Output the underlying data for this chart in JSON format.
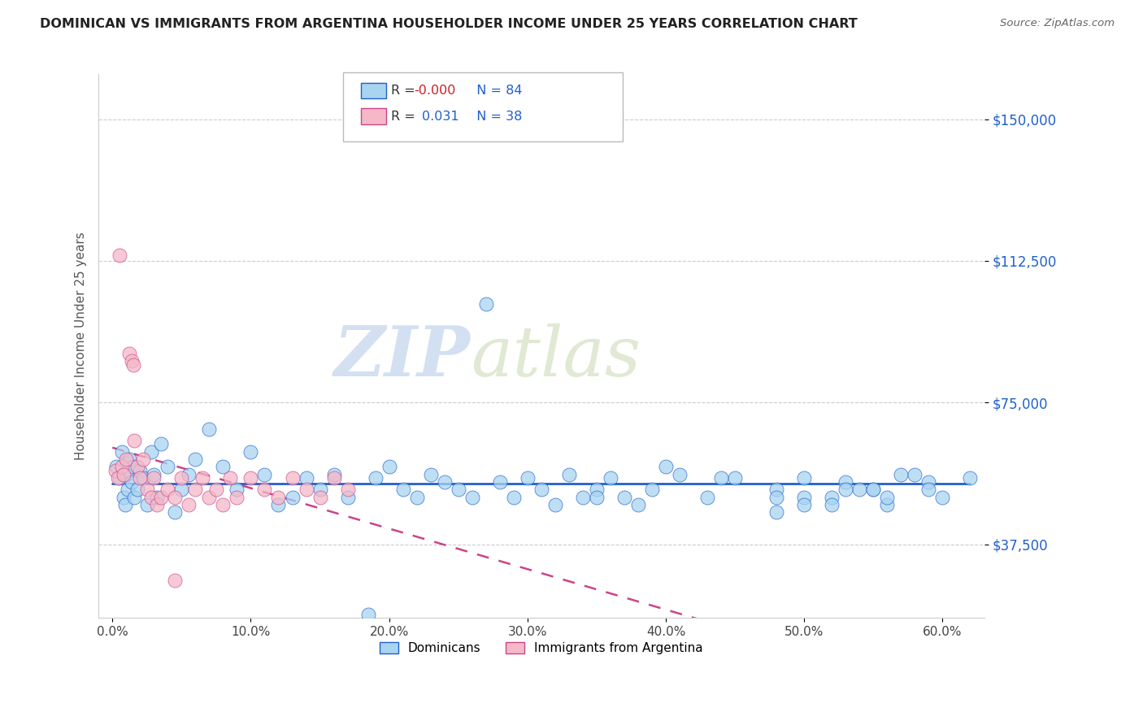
{
  "title": "DOMINICAN VS IMMIGRANTS FROM ARGENTINA HOUSEHOLDER INCOME UNDER 25 YEARS CORRELATION CHART",
  "source": "Source: ZipAtlas.com",
  "ylabel": "Householder Income Under 25 years",
  "xlabel_ticks": [
    "0.0%",
    "10.0%",
    "20.0%",
    "30.0%",
    "40.0%",
    "50.0%",
    "60.0%"
  ],
  "xlabel_vals": [
    0.0,
    10.0,
    20.0,
    30.0,
    40.0,
    50.0,
    60.0
  ],
  "ytick_labels": [
    "$37,500",
    "$75,000",
    "$112,500",
    "$150,000"
  ],
  "ytick_vals": [
    37500,
    75000,
    112500,
    150000
  ],
  "ylim": [
    18000,
    162000
  ],
  "xlim": [
    -1,
    63
  ],
  "legend_r1": "-0.000",
  "legend_n1": "84",
  "legend_r2": "0.031",
  "legend_n2": "38",
  "color_dominican": "#a8d4f0",
  "color_argentina": "#f4b8c8",
  "color_line_dominican": "#2060cc",
  "color_line_argentina": "#cc4488",
  "watermark_zip": "ZIP",
  "watermark_atlas": "atlas",
  "dom_x": [
    0.3,
    0.5,
    0.7,
    0.8,
    0.9,
    1.0,
    1.1,
    1.2,
    1.4,
    1.5,
    1.6,
    1.8,
    2.0,
    2.2,
    2.5,
    2.8,
    3.0,
    3.2,
    3.5,
    4.0,
    4.5,
    5.0,
    5.5,
    6.0,
    7.0,
    8.0,
    9.0,
    10.0,
    11.0,
    12.0,
    13.0,
    14.0,
    15.0,
    16.0,
    17.0,
    18.5,
    19.0,
    20.0,
    21.0,
    22.0,
    23.0,
    24.0,
    25.0,
    26.0,
    27.0,
    28.0,
    29.0,
    30.0,
    31.0,
    32.0,
    33.0,
    34.0,
    35.0,
    36.0,
    37.0,
    38.0,
    39.0,
    40.0,
    41.0,
    43.0,
    45.0,
    48.0,
    50.0,
    53.0,
    55.0,
    57.0,
    59.0,
    48.0,
    50.0,
    52.0,
    54.0,
    56.0,
    58.0,
    59.0,
    60.0,
    62.0,
    55.0,
    48.0,
    52.0,
    56.0,
    53.0,
    50.0,
    44.0,
    35.0
  ],
  "dom_y": [
    58000,
    55000,
    62000,
    50000,
    48000,
    56000,
    52000,
    60000,
    54000,
    58000,
    50000,
    52000,
    57000,
    55000,
    48000,
    62000,
    56000,
    50000,
    64000,
    58000,
    46000,
    52000,
    56000,
    60000,
    68000,
    58000,
    52000,
    62000,
    56000,
    48000,
    50000,
    55000,
    52000,
    56000,
    50000,
    19000,
    55000,
    58000,
    52000,
    50000,
    56000,
    54000,
    52000,
    50000,
    101000,
    54000,
    50000,
    55000,
    52000,
    48000,
    56000,
    50000,
    52000,
    55000,
    50000,
    48000,
    52000,
    58000,
    56000,
    50000,
    55000,
    52000,
    50000,
    54000,
    52000,
    56000,
    54000,
    50000,
    55000,
    50000,
    52000,
    48000,
    56000,
    52000,
    50000,
    55000,
    52000,
    46000,
    48000,
    50000,
    52000,
    48000,
    55000,
    50000
  ],
  "arg_x": [
    0.2,
    0.4,
    0.5,
    0.7,
    0.8,
    1.0,
    1.2,
    1.4,
    1.5,
    1.6,
    1.8,
    2.0,
    2.2,
    2.5,
    2.8,
    3.0,
    3.2,
    3.5,
    4.0,
    4.5,
    5.0,
    5.5,
    6.0,
    6.5,
    7.0,
    7.5,
    8.0,
    8.5,
    9.0,
    10.0,
    11.0,
    12.0,
    13.0,
    14.0,
    15.0,
    16.0,
    17.0,
    4.5
  ],
  "arg_y": [
    57000,
    55000,
    114000,
    58000,
    56000,
    60000,
    88000,
    86000,
    85000,
    65000,
    58000,
    55000,
    60000,
    52000,
    50000,
    55000,
    48000,
    50000,
    52000,
    50000,
    55000,
    48000,
    52000,
    55000,
    50000,
    52000,
    48000,
    55000,
    50000,
    55000,
    52000,
    50000,
    55000,
    52000,
    50000,
    55000,
    52000,
    28000
  ]
}
